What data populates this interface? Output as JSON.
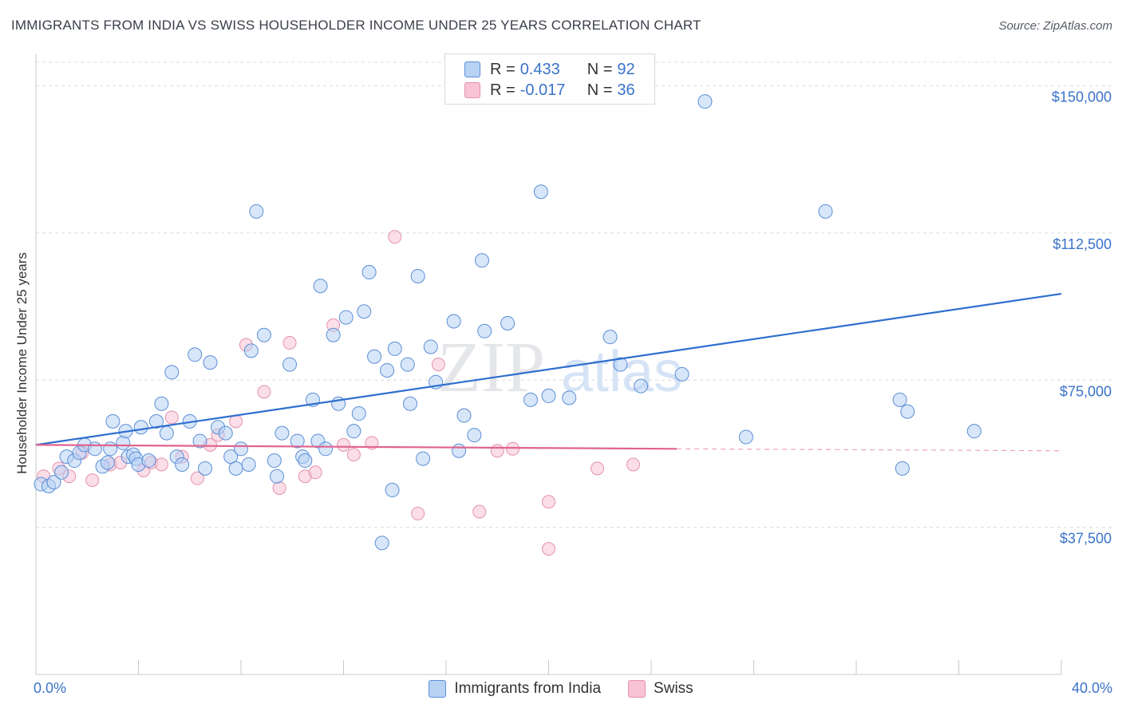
{
  "header": {
    "title": "IMMIGRANTS FROM INDIA VS SWISS HOUSEHOLDER INCOME UNDER 25 YEARS CORRELATION CHART",
    "source": "Source: ZipAtlas.com"
  },
  "legend_box": {
    "rows": [
      {
        "r_label": "R =",
        "r_value": "0.433",
        "n_label": "N =",
        "n_value": "92"
      },
      {
        "r_label": "R =",
        "r_value": "-0.017",
        "n_label": "N =",
        "n_value": "36"
      }
    ]
  },
  "colors": {
    "india_fill": "#b8d2f4",
    "india_stroke": "#5b8fd6",
    "india_line": "#2f6fce",
    "swiss_fill": "#f8c3d5",
    "swiss_stroke": "#e391ae",
    "swiss_line": "#e0648f",
    "tick_text": "#3a73c9",
    "grid": "#d9dce1"
  },
  "chart_data": {
    "type": "scatter",
    "title": "IMMIGRANTS FROM INDIA VS SWISS HOUSEHOLDER INCOME UNDER 25 YEARS CORRELATION CHART",
    "xlabel": "",
    "ylabel": "Householder Income Under 25 years",
    "xlim": [
      0,
      40
    ],
    "ylim": [
      0,
      156000
    ],
    "x_tick_labels": [
      "0.0%",
      "40.0%"
    ],
    "y_ticks": [
      37500,
      75000,
      112500,
      150000
    ],
    "y_tick_labels": [
      "$37,500",
      "$75,000",
      "$112,500",
      "$150,000"
    ],
    "grid": "horizontal dashed",
    "legend_placement": "top-center and bottom",
    "series": [
      {
        "name": "Immigrants from India",
        "trend": {
          "x": [
            0,
            40
          ],
          "y": [
            58500,
            97000
          ]
        },
        "points": [
          {
            "x": 0.2,
            "y": 48500
          },
          {
            "x": 0.5,
            "y": 48000
          },
          {
            "x": 0.7,
            "y": 49000
          },
          {
            "x": 1.0,
            "y": 51500
          },
          {
            "x": 1.2,
            "y": 55500
          },
          {
            "x": 1.5,
            "y": 54500
          },
          {
            "x": 1.7,
            "y": 56500
          },
          {
            "x": 1.9,
            "y": 58500
          },
          {
            "x": 2.3,
            "y": 57500
          },
          {
            "x": 2.6,
            "y": 53000
          },
          {
            "x": 2.8,
            "y": 54000
          },
          {
            "x": 2.9,
            "y": 57500
          },
          {
            "x": 3.0,
            "y": 64500
          },
          {
            "x": 3.4,
            "y": 59000
          },
          {
            "x": 3.5,
            "y": 62000
          },
          {
            "x": 3.6,
            "y": 55500
          },
          {
            "x": 3.8,
            "y": 56000
          },
          {
            "x": 3.9,
            "y": 55000
          },
          {
            "x": 4.0,
            "y": 53500
          },
          {
            "x": 4.1,
            "y": 63000
          },
          {
            "x": 4.4,
            "y": 54500
          },
          {
            "x": 4.7,
            "y": 64500
          },
          {
            "x": 4.9,
            "y": 69000
          },
          {
            "x": 5.1,
            "y": 61500
          },
          {
            "x": 5.3,
            "y": 77000
          },
          {
            "x": 5.5,
            "y": 55500
          },
          {
            "x": 5.7,
            "y": 53500
          },
          {
            "x": 6.0,
            "y": 64500
          },
          {
            "x": 6.2,
            "y": 81500
          },
          {
            "x": 6.4,
            "y": 59500
          },
          {
            "x": 6.6,
            "y": 52500
          },
          {
            "x": 6.8,
            "y": 79500
          },
          {
            "x": 7.1,
            "y": 63000
          },
          {
            "x": 7.4,
            "y": 61500
          },
          {
            "x": 7.6,
            "y": 55500
          },
          {
            "x": 7.8,
            "y": 52500
          },
          {
            "x": 8.0,
            "y": 57500
          },
          {
            "x": 8.3,
            "y": 53500
          },
          {
            "x": 8.4,
            "y": 82500
          },
          {
            "x": 8.6,
            "y": 118000
          },
          {
            "x": 8.9,
            "y": 86500
          },
          {
            "x": 9.3,
            "y": 54500
          },
          {
            "x": 9.4,
            "y": 50500
          },
          {
            "x": 9.6,
            "y": 61500
          },
          {
            "x": 9.9,
            "y": 79000
          },
          {
            "x": 10.2,
            "y": 59500
          },
          {
            "x": 10.4,
            "y": 55500
          },
          {
            "x": 10.5,
            "y": 54500
          },
          {
            "x": 10.8,
            "y": 70000
          },
          {
            "x": 11.0,
            "y": 59500
          },
          {
            "x": 11.1,
            "y": 99000
          },
          {
            "x": 11.3,
            "y": 57500
          },
          {
            "x": 11.6,
            "y": 86500
          },
          {
            "x": 11.8,
            "y": 69000
          },
          {
            "x": 12.1,
            "y": 91000
          },
          {
            "x": 12.4,
            "y": 62000
          },
          {
            "x": 12.6,
            "y": 66500
          },
          {
            "x": 12.8,
            "y": 92500
          },
          {
            "x": 13.0,
            "y": 102500
          },
          {
            "x": 13.2,
            "y": 81000
          },
          {
            "x": 13.7,
            "y": 77500
          },
          {
            "x": 13.9,
            "y": 47000
          },
          {
            "x": 14.0,
            "y": 83000
          },
          {
            "x": 13.5,
            "y": 33500
          },
          {
            "x": 14.5,
            "y": 79000
          },
          {
            "x": 14.6,
            "y": 69000
          },
          {
            "x": 14.9,
            "y": 101500
          },
          {
            "x": 15.1,
            "y": 55000
          },
          {
            "x": 15.4,
            "y": 83500
          },
          {
            "x": 15.6,
            "y": 74500
          },
          {
            "x": 16.3,
            "y": 90000
          },
          {
            "x": 16.7,
            "y": 66000
          },
          {
            "x": 17.1,
            "y": 61000
          },
          {
            "x": 17.4,
            "y": 105500
          },
          {
            "x": 17.5,
            "y": 87500
          },
          {
            "x": 18.4,
            "y": 89500
          },
          {
            "x": 19.3,
            "y": 70000
          },
          {
            "x": 19.7,
            "y": 123000
          },
          {
            "x": 20.0,
            "y": 71000
          },
          {
            "x": 20.8,
            "y": 70500
          },
          {
            "x": 22.4,
            "y": 86000
          },
          {
            "x": 22.8,
            "y": 79000
          },
          {
            "x": 23.6,
            "y": 73500
          },
          {
            "x": 25.2,
            "y": 76500
          },
          {
            "x": 26.1,
            "y": 146000
          },
          {
            "x": 27.7,
            "y": 60500
          },
          {
            "x": 30.8,
            "y": 118000
          },
          {
            "x": 33.8,
            "y": 52500
          },
          {
            "x": 33.7,
            "y": 70000
          },
          {
            "x": 34.0,
            "y": 67000
          },
          {
            "x": 36.6,
            "y": 62000
          },
          {
            "x": 16.5,
            "y": 57000
          }
        ]
      },
      {
        "name": "Swiss",
        "trend": {
          "x": [
            0,
            25
          ],
          "y": [
            58500,
            57500
          ]
        },
        "trend_extension": {
          "x": [
            25,
            40
          ],
          "y": [
            57500,
            57000
          ]
        },
        "points": [
          {
            "x": 0.3,
            "y": 50500
          },
          {
            "x": 0.9,
            "y": 52500
          },
          {
            "x": 1.3,
            "y": 50500
          },
          {
            "x": 1.8,
            "y": 56500
          },
          {
            "x": 2.2,
            "y": 49500
          },
          {
            "x": 2.9,
            "y": 53500
          },
          {
            "x": 3.3,
            "y": 54000
          },
          {
            "x": 4.2,
            "y": 52000
          },
          {
            "x": 4.5,
            "y": 54000
          },
          {
            "x": 4.9,
            "y": 53500
          },
          {
            "x": 5.3,
            "y": 65500
          },
          {
            "x": 5.7,
            "y": 55500
          },
          {
            "x": 6.3,
            "y": 50000
          },
          {
            "x": 6.8,
            "y": 58500
          },
          {
            "x": 7.1,
            "y": 61000
          },
          {
            "x": 7.8,
            "y": 64500
          },
          {
            "x": 8.2,
            "y": 84000
          },
          {
            "x": 8.9,
            "y": 72000
          },
          {
            "x": 9.5,
            "y": 47500
          },
          {
            "x": 9.9,
            "y": 84500
          },
          {
            "x": 10.5,
            "y": 50500
          },
          {
            "x": 10.9,
            "y": 51500
          },
          {
            "x": 11.6,
            "y": 89000
          },
          {
            "x": 12.0,
            "y": 58500
          },
          {
            "x": 12.4,
            "y": 56000
          },
          {
            "x": 13.1,
            "y": 59000
          },
          {
            "x": 14.0,
            "y": 111500
          },
          {
            "x": 14.9,
            "y": 41000
          },
          {
            "x": 15.7,
            "y": 79000
          },
          {
            "x": 17.3,
            "y": 41500
          },
          {
            "x": 18.0,
            "y": 57000
          },
          {
            "x": 18.6,
            "y": 57500
          },
          {
            "x": 20.0,
            "y": 32000
          },
          {
            "x": 20.0,
            "y": 44000
          },
          {
            "x": 21.9,
            "y": 52500
          },
          {
            "x": 23.3,
            "y": 53500
          }
        ]
      }
    ]
  },
  "bottom_legend": {
    "items": [
      {
        "label": "Immigrants from India"
      },
      {
        "label": "Swiss"
      }
    ]
  },
  "watermark": {
    "part1": "ZIP",
    "part2": "atlas"
  }
}
